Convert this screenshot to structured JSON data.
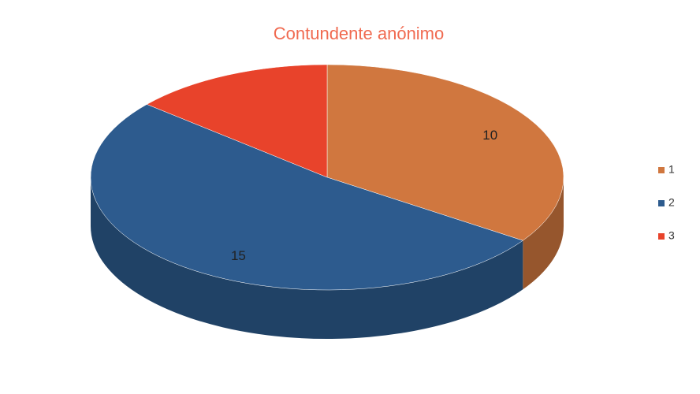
{
  "chart_data": {
    "type": "pie",
    "title": "Contundente anónimo",
    "categories": [
      "1",
      "2",
      "3"
    ],
    "values": [
      10,
      15,
      4
    ],
    "value_labels": [
      "10",
      "15",
      null
    ],
    "colors": [
      "#d0773f",
      "#2d5b8e",
      "#e8432b"
    ],
    "legend": "right"
  }
}
